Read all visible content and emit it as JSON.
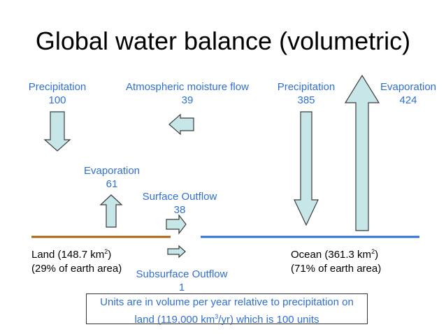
{
  "title": "Global water balance (volumetric)",
  "labels": {
    "precip_land": {
      "name": "Precipitation",
      "value": "100"
    },
    "atm_flow": {
      "name": "Atmospheric moisture flow",
      "value": "39"
    },
    "precip_ocean": {
      "name": "Precipitation",
      "value": "385"
    },
    "evap_ocean": {
      "name": "Evaporation",
      "value": "424"
    },
    "evap_land": {
      "name": "Evaporation",
      "value": "61"
    },
    "surface_outflow": {
      "name": "Surface Outflow",
      "value": "38"
    },
    "subsurface_outflow": {
      "name": "Subsurface Outflow",
      "value": "1"
    }
  },
  "land": {
    "line1_pre": "Land (148.7 km",
    "line1_sup": "2",
    "line1_post": ")",
    "line2": "(29% of earth area)"
  },
  "ocean": {
    "line1_pre": "Ocean (361.3 km",
    "line1_sup": "2",
    "line1_post": ")",
    "line2": "(71% of earth area)"
  },
  "note": {
    "line1": "Units are in volume per year relative to precipitation on",
    "line2_pre": "land (119,000 km",
    "line2_sup": "3",
    "line2_post": "/yr) which is 100 units"
  },
  "colors": {
    "land_line": "#a5620f",
    "ocean_line": "#2a6fd6",
    "arrow_fill": "#c6e6e8",
    "label_blue": "#2f6fd6"
  }
}
